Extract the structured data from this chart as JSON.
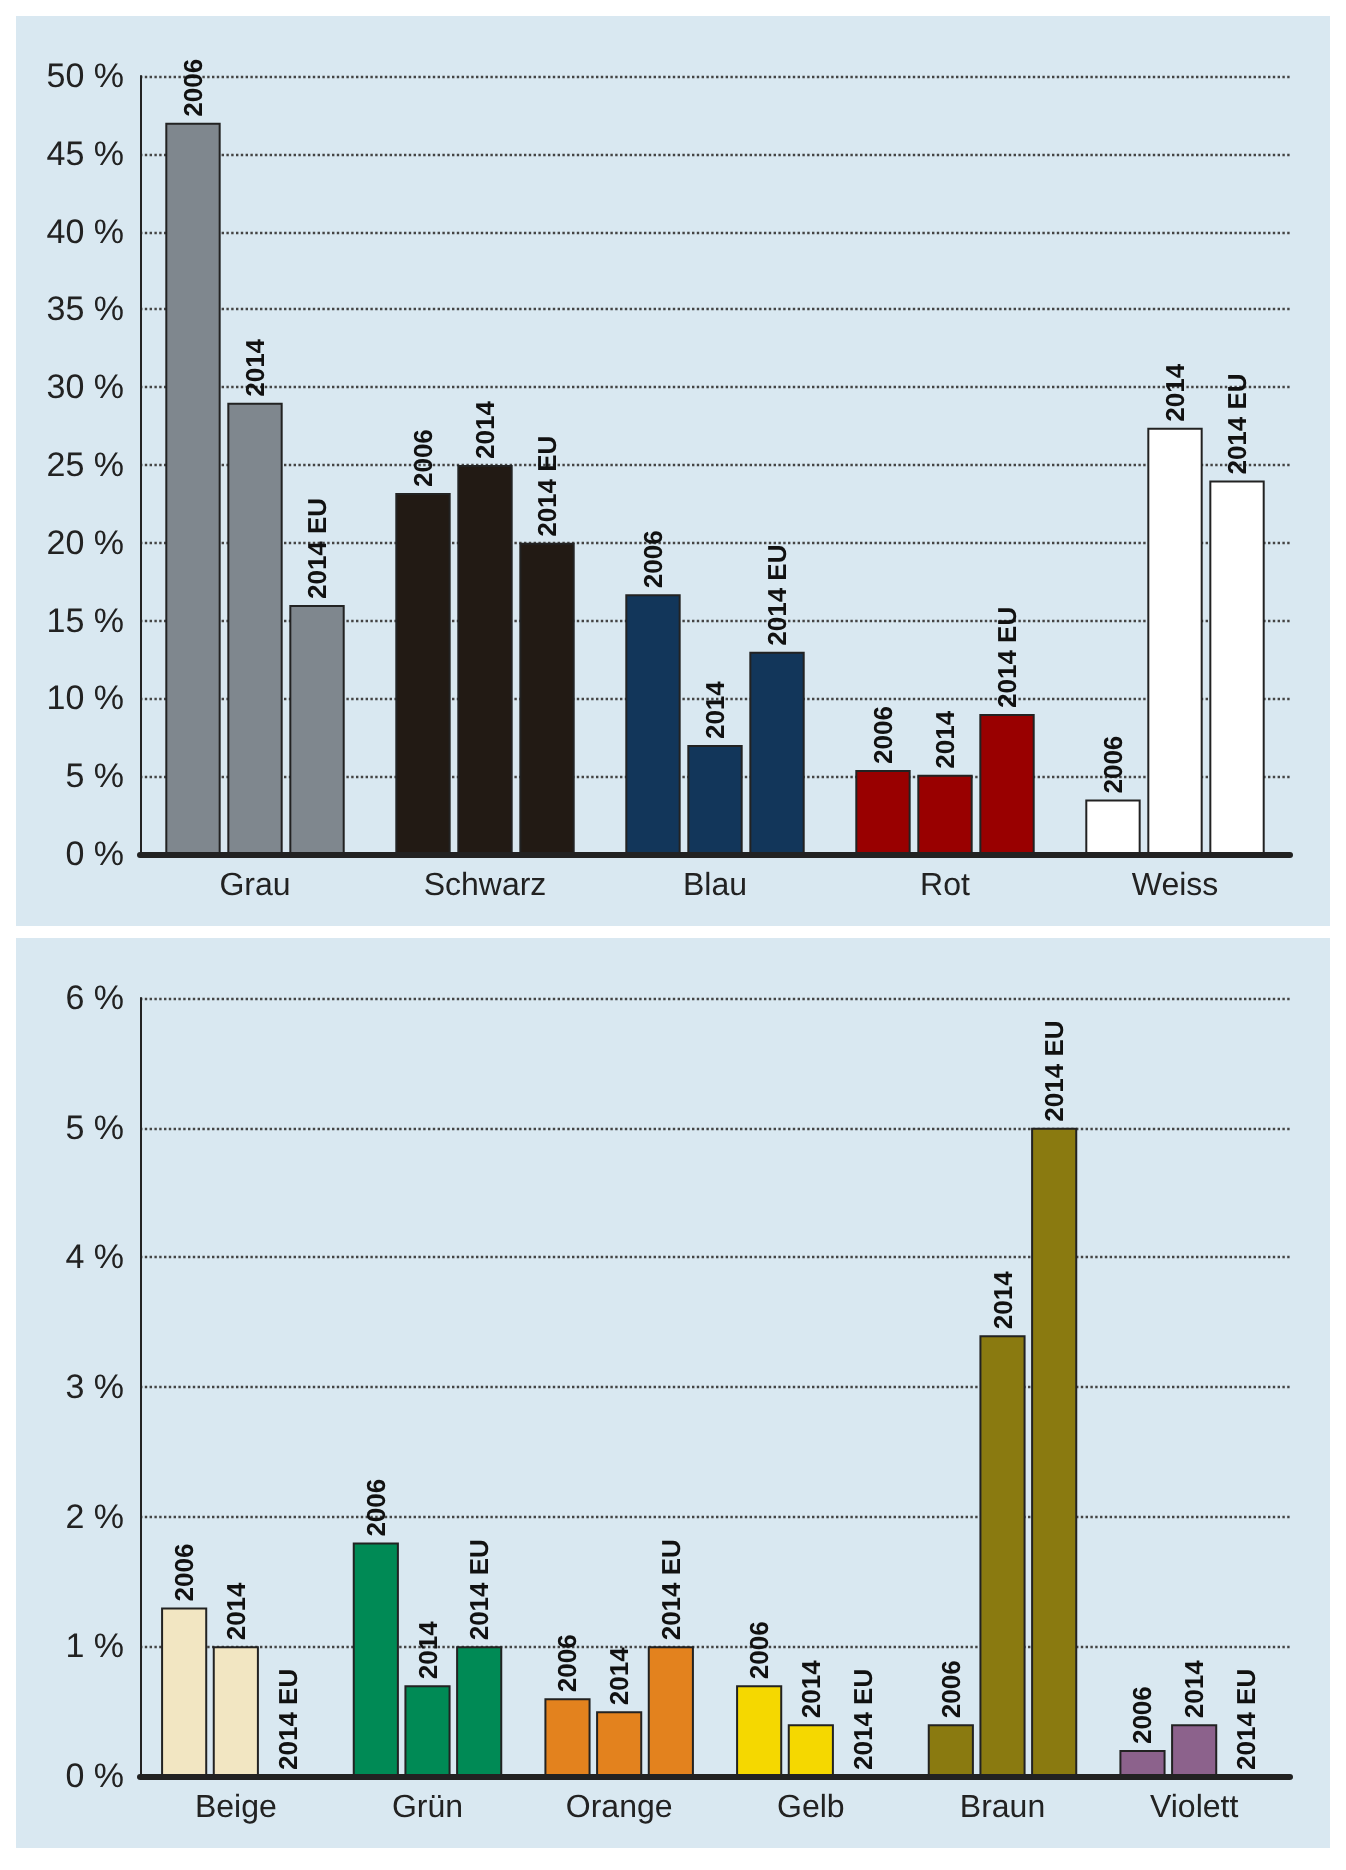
{
  "chart_data": [
    {
      "type": "bar",
      "categories": [
        "Grau",
        "Schwarz",
        "Blau",
        "Rot",
        "Weiss"
      ],
      "series": [
        {
          "name": "2006",
          "colors": [
            "#7f878e",
            "#221a14",
            "#12365a",
            "#990000",
            "#ffffff"
          ],
          "values": [
            47,
            23.2,
            16.7,
            5.4,
            3.5
          ]
        },
        {
          "name": "2014",
          "colors": [
            "#7f878e",
            "#221a14",
            "#12365a",
            "#990000",
            "#ffffff"
          ],
          "values": [
            29,
            25,
            7,
            5.1,
            27.4
          ]
        },
        {
          "name": "2014 EU",
          "colors": [
            "#7f878e",
            "#221a14",
            "#12365a",
            "#990000",
            "#ffffff"
          ],
          "values": [
            16,
            20,
            13,
            9,
            24
          ]
        }
      ],
      "ylim": [
        0,
        50
      ],
      "yticks": [
        {
          "value": 0,
          "label": "0 %"
        },
        {
          "value": 5,
          "label": "5 %"
        },
        {
          "value": 10,
          "label": "10 %"
        },
        {
          "value": 15,
          "label": "15 %"
        },
        {
          "value": 20,
          "label": "20 %"
        },
        {
          "value": 25,
          "label": "25 %"
        },
        {
          "value": 30,
          "label": "30 %"
        },
        {
          "value": 35,
          "label": "35 %"
        },
        {
          "value": 40,
          "label": "40 %"
        },
        {
          "value": 45,
          "label": "45 %"
        },
        {
          "value": 50,
          "label": "50 %"
        }
      ],
      "grid": "y",
      "legend": false
    },
    {
      "type": "bar",
      "categories": [
        "Beige",
        "Grün",
        "Orange",
        "Gelb",
        "Braun",
        "Violett"
      ],
      "series": [
        {
          "name": "2006",
          "colors": [
            "#f2e6c2",
            "#008a55",
            "#e3821e",
            "#f5d800",
            "#8a7a10",
            "#8c628c"
          ],
          "values": [
            1.3,
            1.8,
            0.6,
            0.7,
            0.4,
            0.2
          ]
        },
        {
          "name": "2014",
          "colors": [
            "#f2e6c2",
            "#008a55",
            "#e3821e",
            "#f5d800",
            "#8a7a10",
            "#8c628c"
          ],
          "values": [
            1.0,
            0.7,
            0.5,
            0.4,
            3.4,
            0.4
          ]
        },
        {
          "name": "2014 EU",
          "colors": [
            "#f2e6c2",
            "#008a55",
            "#e3821e",
            "#f5d800",
            "#8a7a10",
            "#8c628c"
          ],
          "values": [
            0,
            1.0,
            1.0,
            0,
            5.0,
            0
          ]
        }
      ],
      "ylim": [
        0,
        6
      ],
      "yticks": [
        {
          "value": 0,
          "label": "0 %"
        },
        {
          "value": 1,
          "label": "1 %"
        },
        {
          "value": 2,
          "label": "2 %"
        },
        {
          "value": 3,
          "label": "3 %"
        },
        {
          "value": 4,
          "label": "4 %"
        },
        {
          "value": 5,
          "label": "5 %"
        },
        {
          "value": 6,
          "label": "6 %"
        }
      ],
      "grid": "y",
      "legend": false
    }
  ]
}
